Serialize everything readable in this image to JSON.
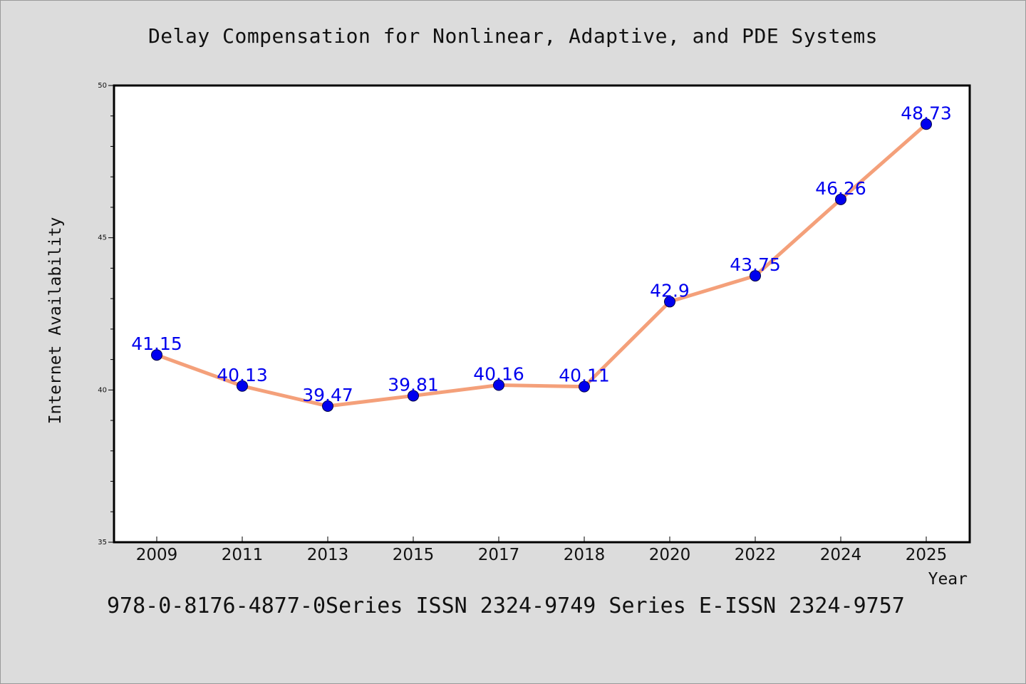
{
  "header": {
    "title": "Delay Compensation for Nonlinear, Adaptive, and PDE Systems"
  },
  "footer": {
    "text": "978-0-8176-4877-0Series ISSN 2324-9749 Series E-ISSN 2324-9757"
  },
  "colors": {
    "line": "#f4a07a",
    "marker": "#0000ee",
    "label": "#0000ee",
    "background": "#dcdcdc",
    "plot_background": "#ffffff"
  },
  "chart_data": {
    "type": "line",
    "xlabel": "Year",
    "ylabel": "Internet Availability",
    "categories": [
      "2009",
      "2011",
      "2013",
      "2015",
      "2017",
      "2018",
      "2020",
      "2022",
      "2024",
      "2025"
    ],
    "series": [
      {
        "values": [
          41.15,
          40.13,
          39.47,
          39.81,
          40.16,
          40.11,
          42.9,
          43.75,
          46.26,
          48.73
        ]
      }
    ],
    "data_labels": [
      "41.15",
      "40.13",
      "39.47",
      "39.81",
      "40.16",
      "40.11",
      "42.9",
      "43.75",
      "46.26",
      "48.73"
    ],
    "ylim": [
      35,
      50
    ],
    "yticks": [
      35,
      40,
      45,
      50
    ],
    "grid": false,
    "legend": "none"
  }
}
